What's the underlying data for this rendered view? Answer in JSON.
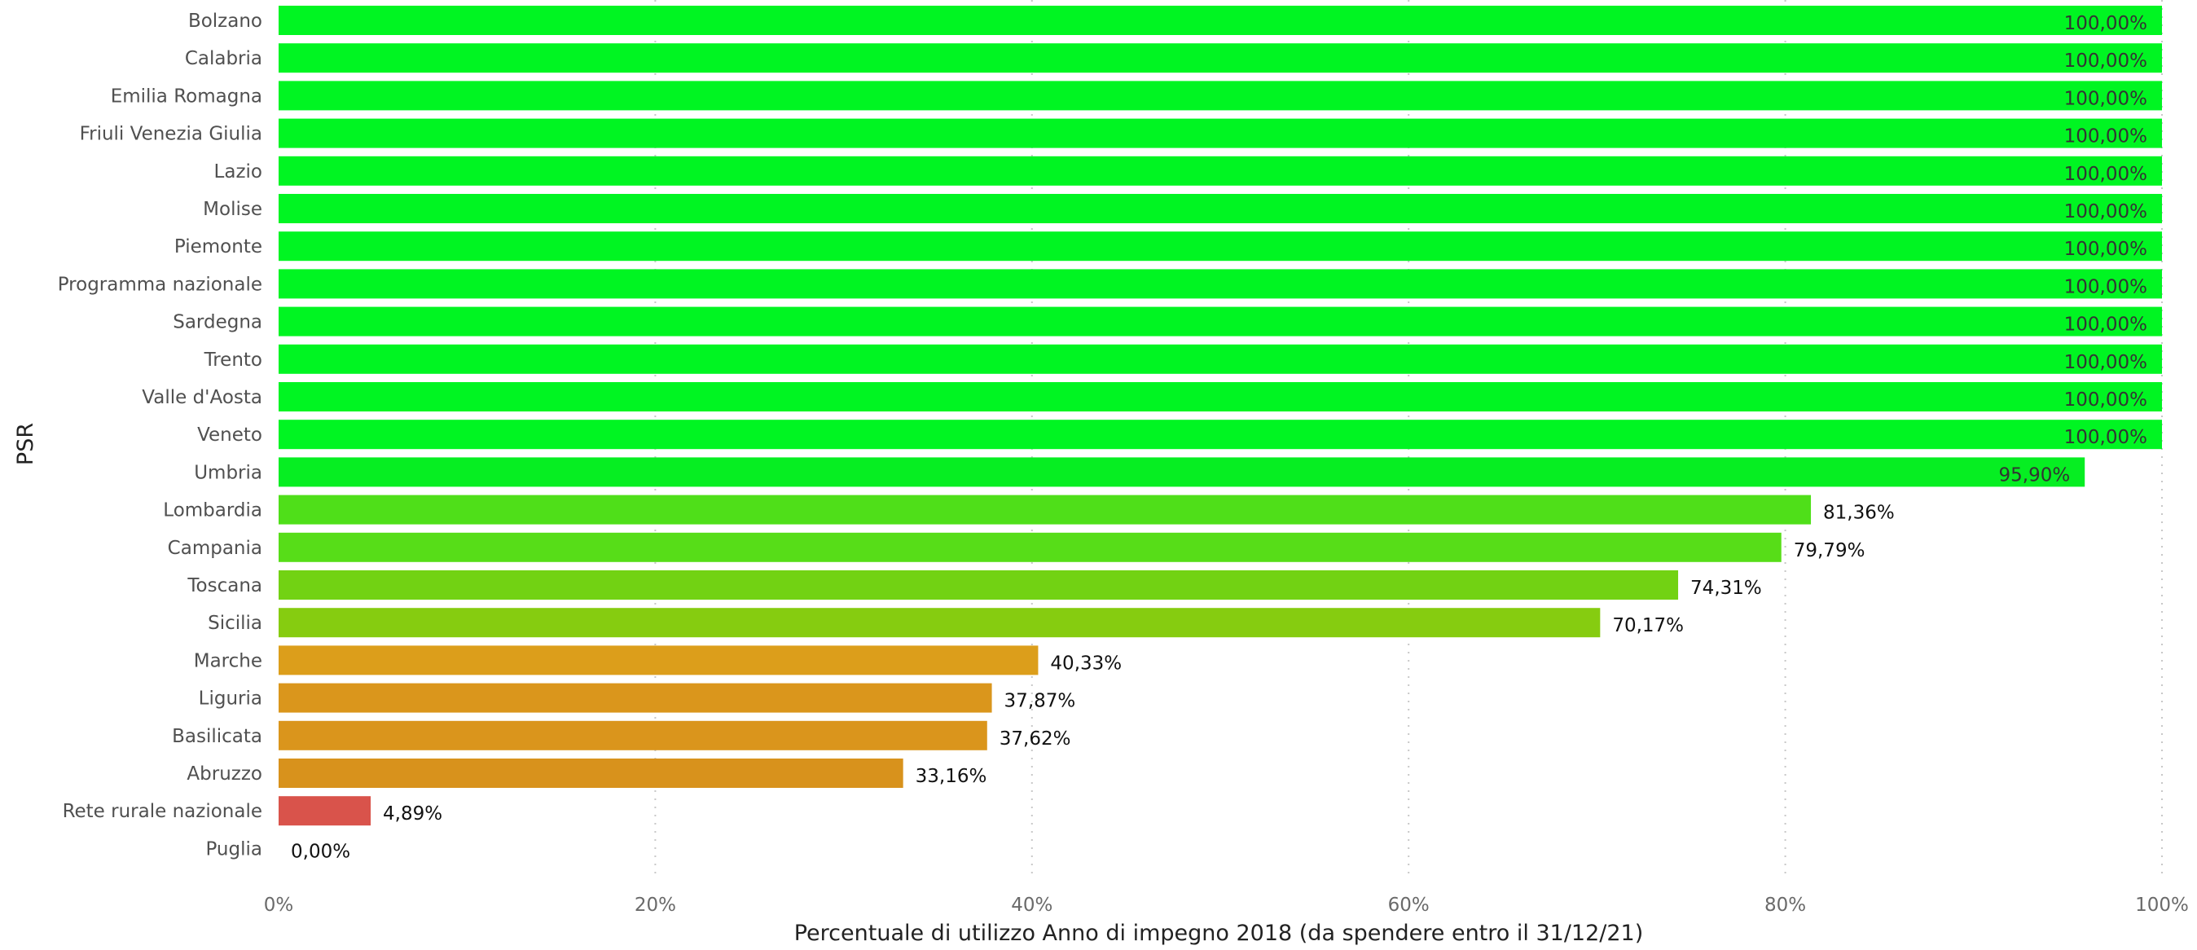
{
  "chart_data": {
    "type": "bar",
    "orientation": "horizontal",
    "xlabel": "Percentuale di utilizzo Anno di impegno 2018 (da spendere entro il 31/12/21)",
    "ylabel": "PSR",
    "xlim": [
      0,
      100
    ],
    "x_ticks": [
      "0%",
      "20%",
      "40%",
      "60%",
      "80%",
      "100%"
    ],
    "grid": "vertical dotted",
    "categories": [
      "Bolzano",
      "Calabria",
      "Emilia Romagna",
      "Friuli Venezia Giulia",
      "Lazio",
      "Molise",
      "Piemonte",
      "Programma nazionale",
      "Sardegna",
      "Trento",
      "Valle d'Aosta",
      "Veneto",
      "Umbria",
      "Lombardia",
      "Campania",
      "Toscana",
      "Sicilia",
      "Marche",
      "Liguria",
      "Basilicata",
      "Abruzzo",
      "Rete rurale nazionale",
      "Puglia"
    ],
    "values": [
      100,
      100,
      100,
      100,
      100,
      100,
      100,
      100,
      100,
      100,
      100,
      100,
      95.9,
      81.36,
      79.79,
      74.31,
      70.17,
      40.33,
      37.87,
      37.62,
      33.16,
      4.89,
      0.0
    ],
    "labels": [
      "100,00%",
      "100,00%",
      "100,00%",
      "100,00%",
      "100,00%",
      "100,00%",
      "100,00%",
      "100,00%",
      "100,00%",
      "100,00%",
      "100,00%",
      "100,00%",
      "95,90%",
      "81,36%",
      "79,79%",
      "74,31%",
      "70,17%",
      "40,33%",
      "37,87%",
      "37,62%",
      "33,16%",
      "4,89%",
      "0,00%"
    ],
    "colors": [
      "#00f522",
      "#00f522",
      "#00f522",
      "#00f522",
      "#00f522",
      "#00f522",
      "#00f522",
      "#00f522",
      "#00f522",
      "#00f522",
      "#00f522",
      "#00f522",
      "#06ee22",
      "#4fdf19",
      "#57dd18",
      "#72d213",
      "#86cc10",
      "#dc9e1b",
      "#da961c",
      "#da951c",
      "#d8921c",
      "#d9534b",
      "#d9534b"
    ]
  }
}
